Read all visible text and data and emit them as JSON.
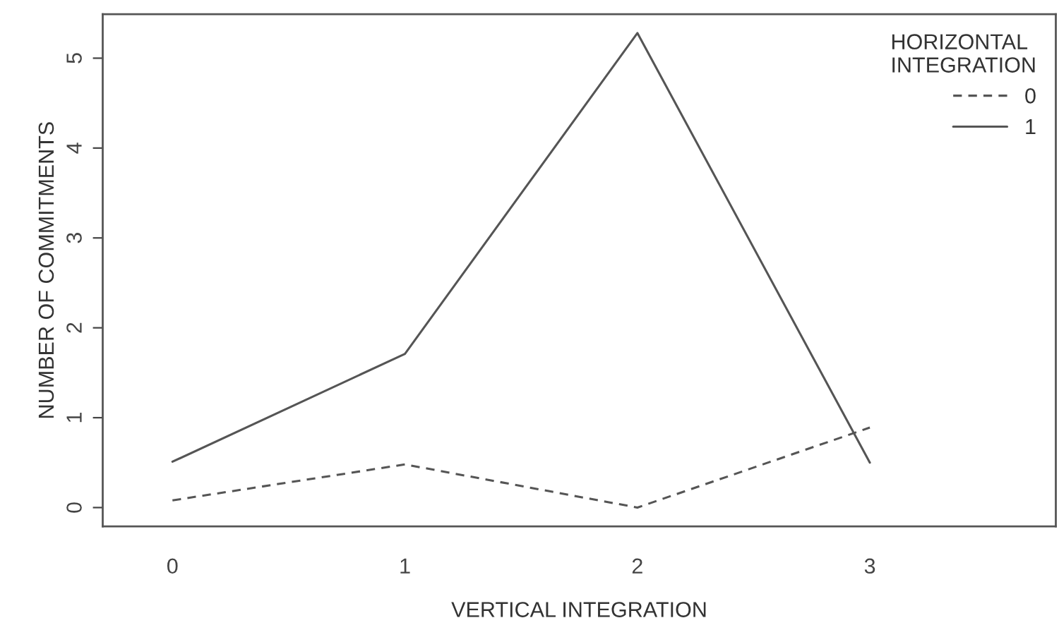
{
  "chart_data": {
    "type": "line",
    "xlabel": "VERTICAL INTEGRATION",
    "ylabel": "NUMBER OF COMMITMENTS",
    "legend_title": "HORIZONTAL\nINTEGRATION",
    "x": [
      0,
      1,
      2,
      3
    ],
    "xlim": [
      -0.3,
      3.8
    ],
    "xticks": [
      0,
      1,
      2,
      3
    ],
    "ylim": [
      -0.21,
      5.49
    ],
    "yticks": [
      0,
      1,
      2,
      3,
      4,
      5
    ],
    "series": [
      {
        "name": "0",
        "color": "#555555",
        "line_style": "dashed",
        "values": [
          0.08,
          0.48,
          0.0,
          0.89
        ]
      },
      {
        "name": "1",
        "color": "#555555",
        "line_style": "solid",
        "values": [
          0.51,
          1.71,
          5.28,
          0.5
        ]
      }
    ],
    "legend": "top right",
    "grid": false,
    "marker": "none"
  }
}
